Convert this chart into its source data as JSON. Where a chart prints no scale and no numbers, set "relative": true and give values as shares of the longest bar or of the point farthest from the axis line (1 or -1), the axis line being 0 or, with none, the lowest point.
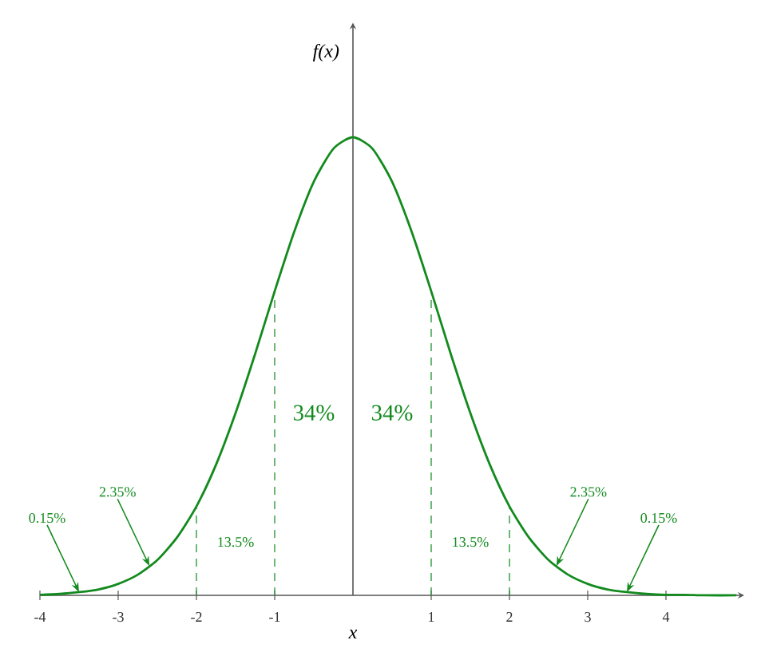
{
  "chart_data": {
    "type": "line",
    "xlabel": "x",
    "ylabel": "f(x)",
    "relative": true,
    "color": "#138a1e",
    "line_style": "solid",
    "xlim": [
      -4,
      5
    ],
    "xticks": [
      -4,
      -3,
      -2,
      -1,
      1,
      2,
      3,
      4
    ],
    "x": [
      -4,
      -3.75,
      -3.5,
      -3.25,
      -3,
      -2.75,
      -2.5,
      -2.25,
      -2,
      -1.75,
      -1.5,
      -1.25,
      -1,
      -0.75,
      -0.5,
      -0.25,
      0,
      0.25,
      0.5,
      0.75,
      1,
      1.25,
      1.5,
      1.75,
      2,
      2.25,
      2.5,
      2.75,
      3,
      3.25,
      3.5,
      3.75,
      4,
      4.25,
      4.5,
      4.9
    ],
    "values": [
      0.001,
      0.003,
      0.007,
      0.013,
      0.025,
      0.045,
      0.077,
      0.126,
      0.194,
      0.285,
      0.398,
      0.527,
      0.664,
      0.794,
      0.903,
      0.975,
      1,
      0.975,
      0.903,
      0.794,
      0.664,
      0.527,
      0.398,
      0.285,
      0.194,
      0.126,
      0.077,
      0.045,
      0.025,
      0.013,
      0.007,
      0.003,
      0.001,
      0.001,
      0,
      0
    ],
    "ref_lines": [
      {
        "axis": "x",
        "value": -2,
        "color": "#2e9a3a",
        "line_style": "dashed"
      },
      {
        "axis": "x",
        "value": -1,
        "color": "#2e9a3a",
        "line_style": "dashed"
      },
      {
        "axis": "x",
        "value": 1,
        "color": "#2e9a3a",
        "line_style": "dashed"
      },
      {
        "axis": "x",
        "value": 2,
        "color": "#2e9a3a",
        "line_style": "dashed"
      }
    ],
    "annotations": [
      {
        "text": "0.15%",
        "x": -3.5,
        "y": 0.007
      },
      {
        "text": "2.35%",
        "x": -2.6,
        "y": 0.064
      },
      "13.5%",
      "34%",
      "34%",
      "13.5%",
      {
        "text": "2.35%",
        "x": 2.6,
        "y": 0.064
      },
      {
        "text": "0.15%",
        "x": 3.5,
        "y": 0.007
      }
    ]
  }
}
